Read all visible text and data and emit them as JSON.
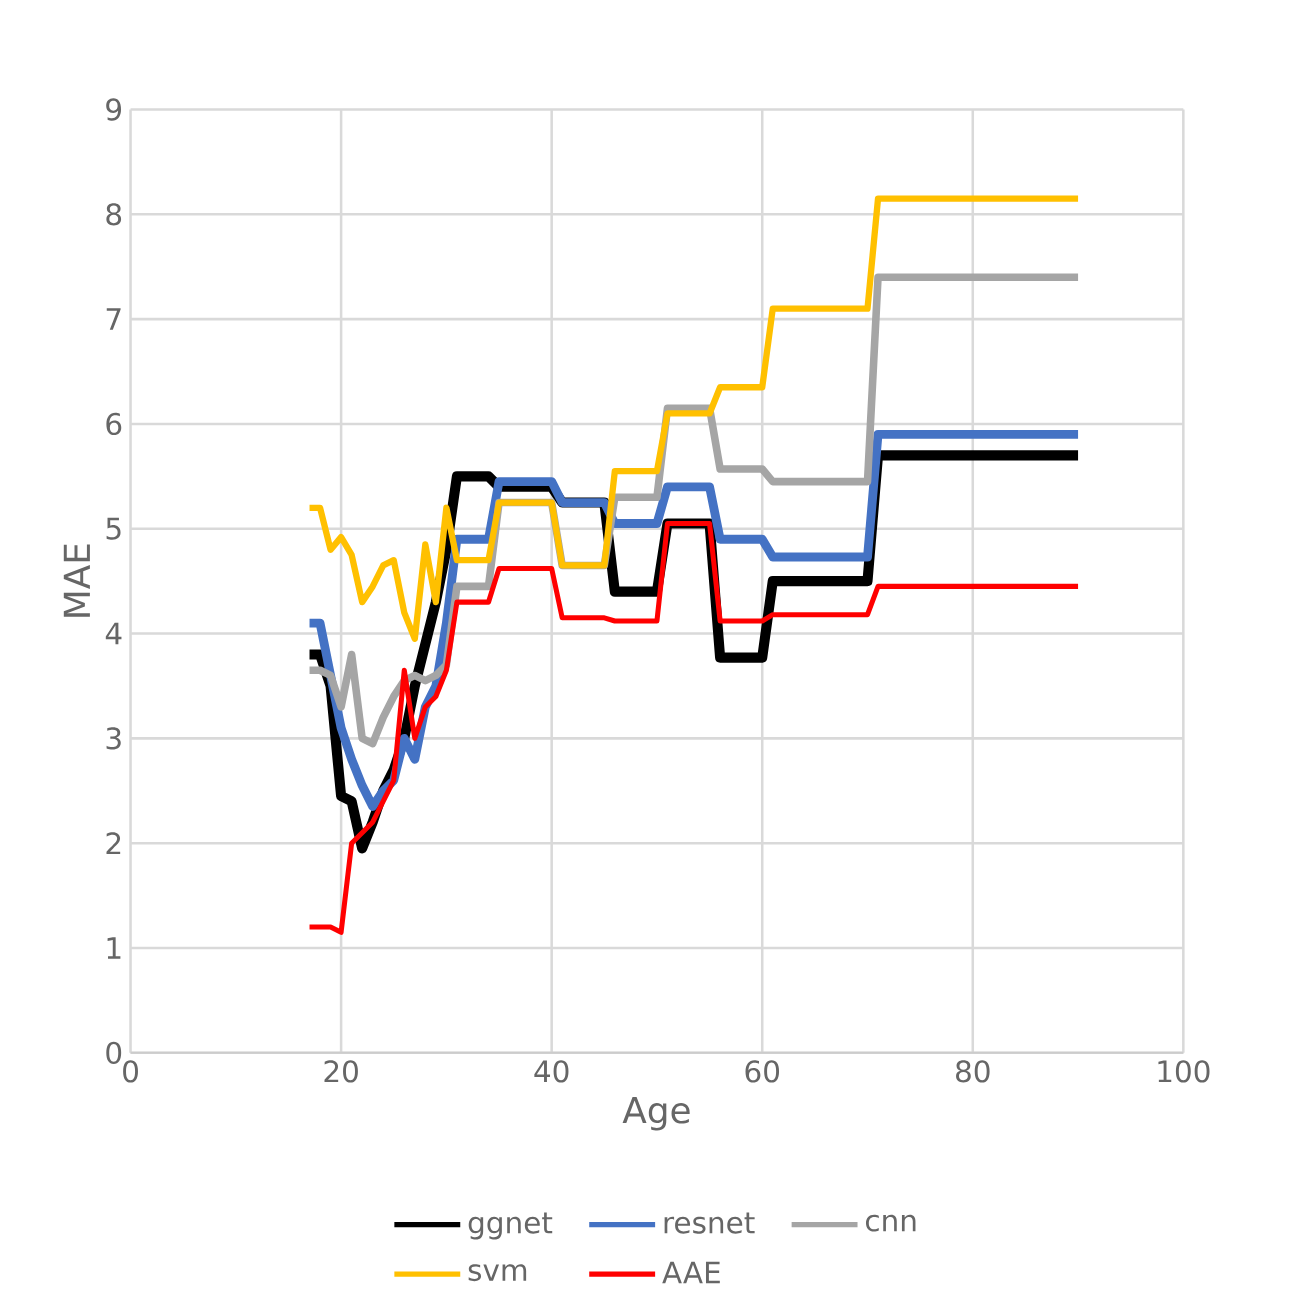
{
  "chart_data": {
    "type": "line",
    "xlabel": "Age",
    "ylabel": "MAE",
    "xlim": [
      0,
      100
    ],
    "xticks": [
      0,
      20,
      40,
      60,
      80,
      100
    ],
    "ylim": [
      0,
      9
    ],
    "yticks": [
      0,
      1,
      2,
      3,
      4,
      5,
      6,
      7,
      8,
      9
    ],
    "grid": true,
    "legend": "bottom",
    "marker": "none",
    "line_style": "solid",
    "series": [
      {
        "name": "ggnet",
        "color": "#000000",
        "x": [
          17,
          18,
          19,
          20,
          21,
          22,
          23,
          24,
          25,
          26,
          27,
          28,
          29,
          30,
          31,
          34,
          35,
          40,
          41,
          45,
          46,
          50,
          51,
          55,
          56,
          60,
          61,
          70,
          71,
          90
        ],
        "values": [
          3.8,
          3.8,
          3.5,
          2.45,
          2.4,
          1.95,
          2.2,
          2.5,
          2.7,
          3.0,
          3.5,
          3.9,
          4.3,
          4.8,
          5.5,
          5.5,
          5.4,
          5.4,
          5.25,
          5.25,
          4.4,
          4.4,
          5.05,
          5.05,
          3.77,
          3.77,
          4.5,
          4.5,
          5.7,
          5.7
        ]
      },
      {
        "name": "resnet",
        "color": "#4472c4",
        "x": [
          17,
          18,
          19,
          20,
          21,
          22,
          23,
          24,
          25,
          26,
          27,
          28,
          29,
          30,
          31,
          34,
          35,
          40,
          41,
          45,
          46,
          50,
          51,
          55,
          56,
          60,
          61,
          70,
          71,
          90
        ],
        "values": [
          4.1,
          4.1,
          3.6,
          3.1,
          2.8,
          2.55,
          2.35,
          2.5,
          2.6,
          3.0,
          2.8,
          3.3,
          3.5,
          4.1,
          4.9,
          4.9,
          5.45,
          5.45,
          5.25,
          5.25,
          5.05,
          5.05,
          5.4,
          5.4,
          4.9,
          4.9,
          4.73,
          4.73,
          5.9,
          5.9
        ]
      },
      {
        "name": "cnn",
        "color": "#a5a5a5",
        "x": [
          17,
          18,
          19,
          20,
          21,
          22,
          23,
          24,
          25,
          26,
          27,
          28,
          29,
          30,
          31,
          34,
          35,
          40,
          41,
          45,
          46,
          50,
          51,
          55,
          56,
          60,
          61,
          70,
          71,
          90
        ],
        "values": [
          3.65,
          3.65,
          3.6,
          3.3,
          3.8,
          3.0,
          2.95,
          3.2,
          3.4,
          3.55,
          3.6,
          3.55,
          3.6,
          3.7,
          4.45,
          4.45,
          5.25,
          5.25,
          4.65,
          4.65,
          5.3,
          5.3,
          6.15,
          6.15,
          5.57,
          5.57,
          5.45,
          5.45,
          7.4,
          7.4
        ]
      },
      {
        "name": "svm",
        "color": "#ffc000",
        "x": [
          17,
          18,
          19,
          20,
          21,
          22,
          23,
          24,
          25,
          26,
          27,
          28,
          29,
          30,
          31,
          34,
          35,
          40,
          41,
          45,
          46,
          50,
          51,
          55,
          56,
          60,
          61,
          70,
          71,
          90
        ],
        "values": [
          5.2,
          5.2,
          4.8,
          4.92,
          4.75,
          4.3,
          4.45,
          4.65,
          4.7,
          4.2,
          3.95,
          4.85,
          4.3,
          5.2,
          4.7,
          4.7,
          5.25,
          5.25,
          4.65,
          4.65,
          5.55,
          5.55,
          6.1,
          6.1,
          6.35,
          6.35,
          7.1,
          7.1,
          8.15,
          8.15
        ]
      },
      {
        "name": "AAE",
        "color": "#ff0000",
        "x": [
          17,
          19,
          20,
          21,
          22,
          23,
          24,
          25,
          26,
          27,
          28,
          29,
          30,
          31,
          34,
          35,
          40,
          41,
          45,
          46,
          50,
          51,
          55,
          56,
          60,
          61,
          70,
          71,
          90
        ],
        "values": [
          1.2,
          1.2,
          1.15,
          2.0,
          2.1,
          2.2,
          2.4,
          2.6,
          3.65,
          3.0,
          3.3,
          3.4,
          3.65,
          4.3,
          4.3,
          4.62,
          4.62,
          4.15,
          4.15,
          4.12,
          4.12,
          5.05,
          5.05,
          4.12,
          4.12,
          4.18,
          4.18,
          4.45,
          4.45
        ]
      }
    ]
  }
}
